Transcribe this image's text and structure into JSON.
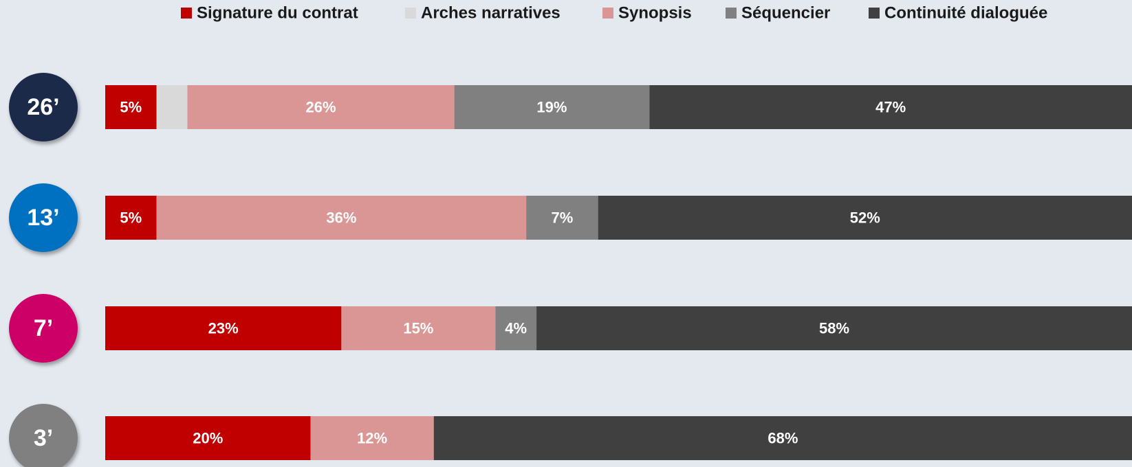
{
  "chart_data": {
    "type": "stacked-bar-horizontal",
    "categories": [
      "26’",
      "13’",
      "7’",
      "3’"
    ],
    "category_colors": [
      "#1b2a4a",
      "#0070c0",
      "#cc0066",
      "#808080"
    ],
    "xlim": [
      0,
      100
    ],
    "series": [
      {
        "name": "Signature du contrat",
        "color": "#c00000",
        "values": [
          5,
          5,
          23,
          20
        ],
        "value_labels": [
          "5%",
          "5%",
          "23%",
          "20%"
        ]
      },
      {
        "name": "Arches narratives",
        "color": "#d9d9d9",
        "values": [
          3,
          null,
          null,
          null
        ],
        "value_labels": [
          null,
          null,
          null,
          null
        ]
      },
      {
        "name": "Synopsis",
        "color": "#da9694",
        "values": [
          26,
          36,
          15,
          12
        ],
        "value_labels": [
          "26%",
          "36%",
          "15%",
          "12%"
        ]
      },
      {
        "name": "Séquencier",
        "color": "#808080",
        "values": [
          19,
          7,
          4,
          null
        ],
        "value_labels": [
          "19%",
          "7%",
          "4%",
          null
        ]
      },
      {
        "name": "Continuité dialoguée",
        "color": "#404040",
        "values": [
          47,
          52,
          58,
          68
        ],
        "value_labels": [
          "47%",
          "52%",
          "58%",
          "68%"
        ]
      }
    ],
    "legend": "top"
  }
}
